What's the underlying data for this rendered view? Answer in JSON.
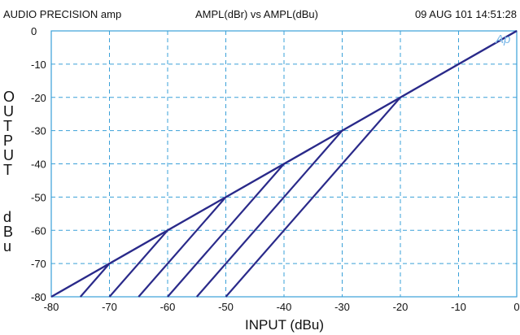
{
  "header": {
    "left": "AUDIO PRECISION amp",
    "center": "AMPL(dBr) vs AMPL(dBu)",
    "right": "09 AUG 101 14:51:28"
  },
  "chart_data": {
    "type": "line",
    "title": "AMPL(dBr) vs AMPL(dBu)",
    "xlabel": "INPUT (dBu)",
    "ylabel": "OUTPUT dBu",
    "xlim": [
      -80,
      0
    ],
    "ylim": [
      -80,
      0
    ],
    "xticks": [
      -80,
      -70,
      -60,
      -50,
      -40,
      -30,
      -20,
      -10,
      0
    ],
    "yticks": [
      0,
      -10,
      -20,
      -30,
      -40,
      -50,
      -60,
      -70,
      -80
    ],
    "grid": true,
    "logo": "Ap",
    "series": [
      {
        "x": [
          -80,
          -20,
          0
        ],
        "y": [
          -80,
          -20,
          0
        ]
      },
      {
        "x": [
          -20,
          0
        ],
        "y": [
          -20,
          0
        ]
      },
      {
        "x": [
          -50,
          -20
        ],
        "y": [
          -80,
          -20
        ]
      },
      {
        "x": [
          -55,
          -30
        ],
        "y": [
          -80,
          -30
        ]
      },
      {
        "x": [
          -60,
          -40
        ],
        "y": [
          -80,
          -40
        ]
      },
      {
        "x": [
          -65,
          -50
        ],
        "y": [
          -80,
          -50
        ]
      },
      {
        "x": [
          -70,
          -60
        ],
        "y": [
          -80,
          -60
        ]
      },
      {
        "x": [
          -75,
          -70
        ],
        "y": [
          -80,
          -70
        ]
      },
      {
        "x": [
          -79,
          -20
        ],
        "y": [
          -79,
          -20
        ]
      }
    ],
    "colors": {
      "line": "#2a2a8a",
      "grid": "#3aa0d8",
      "frame": "#3aa0d8"
    }
  }
}
